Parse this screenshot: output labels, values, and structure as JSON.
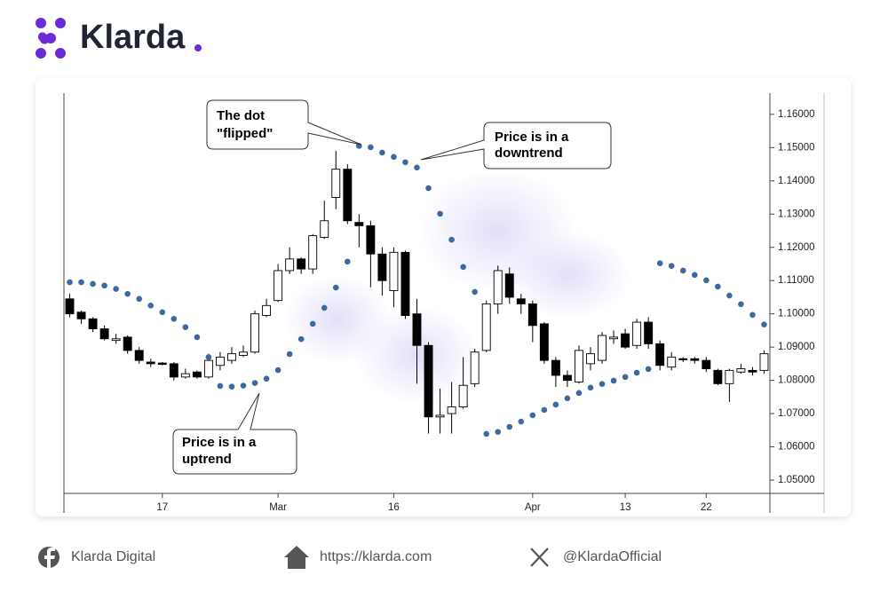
{
  "header": {
    "brand": "Klarda"
  },
  "chart_data": {
    "type": "candlestick",
    "categories": [
      null,
      null,
      null,
      null,
      null,
      null,
      null,
      null,
      "17",
      null,
      null,
      null,
      null,
      null,
      null,
      null,
      null,
      null,
      "Mar",
      null,
      null,
      null,
      null,
      null,
      null,
      null,
      null,
      null,
      "16",
      null,
      null,
      null,
      null,
      null,
      null,
      null,
      null,
      null,
      null,
      null,
      "Apr",
      null,
      null,
      null,
      null,
      null,
      null,
      null,
      "13",
      null,
      null,
      null,
      null,
      null,
      null,
      "22",
      null,
      null,
      null,
      null,
      null
    ],
    "open": [
      1.1045,
      1.1005,
      1.0985,
      1.0955,
      1.092,
      1.093,
      1.089,
      1.0855,
      1.0852,
      1.085,
      1.081,
      1.0825,
      1.081,
      1.0845,
      1.086,
      1.0875,
      1.0885,
      1.0995,
      1.104,
      1.113,
      1.1165,
      1.1135,
      1.123,
      1.135,
      1.1435,
      1.1275,
      1.1265,
      1.118,
      1.107,
      1.1185,
      1.1,
      1.0905,
      1.069,
      1.07,
      1.072,
      1.079,
      1.089,
      1.103,
      1.112,
      1.1045,
      1.103,
      1.097,
      1.086,
      1.0815,
      1.0795,
      1.085,
      1.086,
      1.0925,
      1.094,
      1.0905,
      1.0975,
      1.091,
      1.084,
      1.0865,
      1.0865,
      1.086,
      1.083,
      1.079,
      1.0825,
      1.083,
      1.083
    ],
    "high": [
      1.106,
      1.101,
      1.099,
      1.0965,
      1.094,
      1.0935,
      1.09,
      1.0865,
      1.0855,
      1.0855,
      1.0835,
      1.083,
      1.088,
      1.0885,
      1.09,
      1.0905,
      1.101,
      1.1045,
      1.115,
      1.12,
      1.117,
      1.124,
      1.134,
      1.149,
      1.145,
      1.13,
      1.128,
      1.12,
      1.12,
      1.119,
      1.1045,
      1.0915,
      1.0775,
      1.0795,
      1.087,
      1.0895,
      1.104,
      1.1145,
      1.114,
      1.106,
      1.104,
      1.0975,
      1.087,
      1.083,
      1.0905,
      1.09,
      1.0945,
      1.095,
      1.0955,
      1.0985,
      1.099,
      1.092,
      1.0885,
      1.087,
      1.087,
      1.087,
      1.0835,
      1.0835,
      1.085,
      1.084,
      1.089
    ],
    "low": [
      1.099,
      1.097,
      1.0945,
      1.092,
      1.091,
      1.088,
      1.085,
      1.084,
      1.0845,
      1.08,
      1.0805,
      1.0805,
      1.0805,
      1.083,
      1.085,
      1.087,
      1.088,
      1.099,
      1.1035,
      1.112,
      1.112,
      1.112,
      1.1225,
      1.1315,
      1.127,
      1.12,
      1.108,
      1.1055,
      1.102,
      1.0985,
      1.079,
      1.064,
      1.064,
      1.064,
      1.0715,
      1.078,
      1.0885,
      1.1,
      1.103,
      1.1,
      1.0915,
      1.085,
      1.078,
      1.078,
      1.079,
      1.083,
      1.085,
      1.091,
      1.0895,
      1.0895,
      1.0895,
      1.083,
      1.083,
      1.0855,
      1.085,
      1.0825,
      1.0785,
      1.0735,
      1.082,
      1.0815,
      1.082
    ],
    "close": [
      1.1,
      1.0985,
      1.0955,
      1.0925,
      1.0925,
      1.089,
      1.086,
      1.085,
      1.0848,
      1.081,
      1.082,
      1.081,
      1.086,
      1.087,
      1.088,
      1.0885,
      1.1,
      1.1025,
      1.113,
      1.1165,
      1.1135,
      1.1235,
      1.128,
      1.1435,
      1.128,
      1.1265,
      1.118,
      1.11,
      1.1185,
      1.0995,
      1.0905,
      1.069,
      1.0695,
      1.072,
      1.0785,
      1.0885,
      1.103,
      1.113,
      1.105,
      1.103,
      1.0965,
      1.086,
      1.0815,
      1.08,
      1.089,
      1.088,
      1.0935,
      1.093,
      1.09,
      1.0975,
      1.091,
      1.0845,
      1.087,
      1.0862,
      1.086,
      1.0835,
      1.079,
      1.083,
      1.0835,
      1.0825,
      1.088
    ],
    "up_color": "#ffffff",
    "down_color": "#000000",
    "overlay": {
      "type": "scatter",
      "color": "#3d6a9e",
      "values": [
        1.1095,
        1.1095,
        1.109,
        1.1085,
        1.1075,
        1.106,
        1.1045,
        1.1025,
        1.1005,
        1.0985,
        1.096,
        1.093,
        1.087,
        1.0783,
        1.0781,
        1.0784,
        1.0792,
        1.0805,
        1.0831,
        1.0879,
        1.0924,
        1.097,
        1.1018,
        1.1079,
        1.1157,
        1.1505,
        1.1501,
        1.1485,
        1.1472,
        1.1456,
        1.144,
        1.1378,
        1.1301,
        1.1223,
        1.1141,
        1.1066,
        1.0639,
        1.0645,
        1.066,
        1.0676,
        1.0695,
        1.0711,
        1.0727,
        1.0746,
        1.0762,
        1.0778,
        1.0789,
        1.0799,
        1.081,
        1.0823,
        1.0834,
        1.1152,
        1.1144,
        1.113,
        1.1117,
        1.1101,
        1.1082,
        1.1055,
        1.1029,
        1.0997,
        1.0968
      ]
    },
    "ylim": [
      1.046,
      1.1677
    ],
    "yticks": [
      {
        "value": 1.05,
        "label": "1.05000"
      },
      {
        "value": 1.06,
        "label": "1.06000"
      },
      {
        "value": 1.07,
        "label": "1.07000"
      },
      {
        "value": 1.08,
        "label": "1.08000"
      },
      {
        "value": 1.09,
        "label": "1.09000"
      },
      {
        "value": 1.1,
        "label": "1.10000"
      },
      {
        "value": 1.11,
        "label": "1.11000"
      },
      {
        "value": 1.12,
        "label": "1.12000"
      },
      {
        "value": 1.13,
        "label": "1.13000"
      },
      {
        "value": 1.14,
        "label": "1.14000"
      },
      {
        "value": 1.15,
        "label": "1.15000"
      },
      {
        "value": 1.16,
        "label": "1.16000"
      }
    ],
    "annotations": [
      {
        "lines": [
          "The dot",
          "\"flipped\""
        ]
      },
      {
        "lines": [
          "Price is in a",
          "downtrend"
        ]
      },
      {
        "lines": [
          "Price is in a",
          "uptrend"
        ]
      }
    ]
  },
  "footer": {
    "facebook": "Klarda Digital",
    "website": "https://klarda.com",
    "x": "@KlardaOfficial"
  }
}
